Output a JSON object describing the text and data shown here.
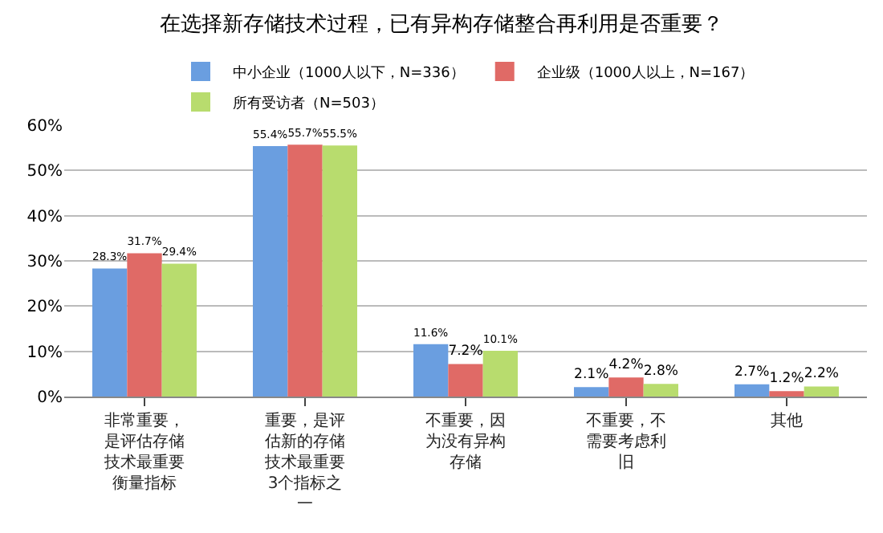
{
  "chart_data": {
    "type": "bar",
    "title": "在选择新存储技术过程，已有异构存储整合再利用是否重要？",
    "categories": [
      "非常重要，是评估存储技术最重要衡量指标",
      "重要，是评估新的存储技术最重要3个指标之一",
      "不重要，因为没有异构存储",
      "不重要，不需要考虑利旧",
      "其他"
    ],
    "series": [
      {
        "name": "中小企业（1000人以下，N=336）",
        "color": "#6a9ee0",
        "values": [
          28.3,
          55.4,
          11.6,
          2.1,
          2.7
        ],
        "value_labels": [
          "28.3%",
          "55.4%",
          "11.6%",
          "2.1%",
          "2.7%"
        ]
      },
      {
        "name": "企业级（1000人以上，N=167）",
        "color": "#e06a66",
        "values": [
          31.7,
          55.7,
          7.2,
          4.2,
          1.2
        ],
        "value_labels": [
          "31.7%",
          "55.7%",
          "7.2%",
          "4.2%",
          "1.2%"
        ]
      },
      {
        "name": "所有受访者（N=503）",
        "color": "#b8dc6e",
        "values": [
          29.4,
          55.5,
          10.1,
          2.8,
          2.2
        ],
        "value_labels": [
          "29.4%",
          "55.5%",
          "10.1%",
          "2.8%",
          "2.2%"
        ]
      }
    ],
    "ylim": [
      0,
      60
    ],
    "yticks": [
      {
        "value": 0,
        "label": "0%"
      },
      {
        "value": 10,
        "label": "10%"
      },
      {
        "value": 20,
        "label": "20%"
      },
      {
        "value": 30,
        "label": "30%"
      },
      {
        "value": 40,
        "label": "40%"
      },
      {
        "value": 50,
        "label": "50%"
      },
      {
        "value": 60,
        "label": "60%"
      }
    ],
    "grid": "y",
    "legend": "top"
  }
}
